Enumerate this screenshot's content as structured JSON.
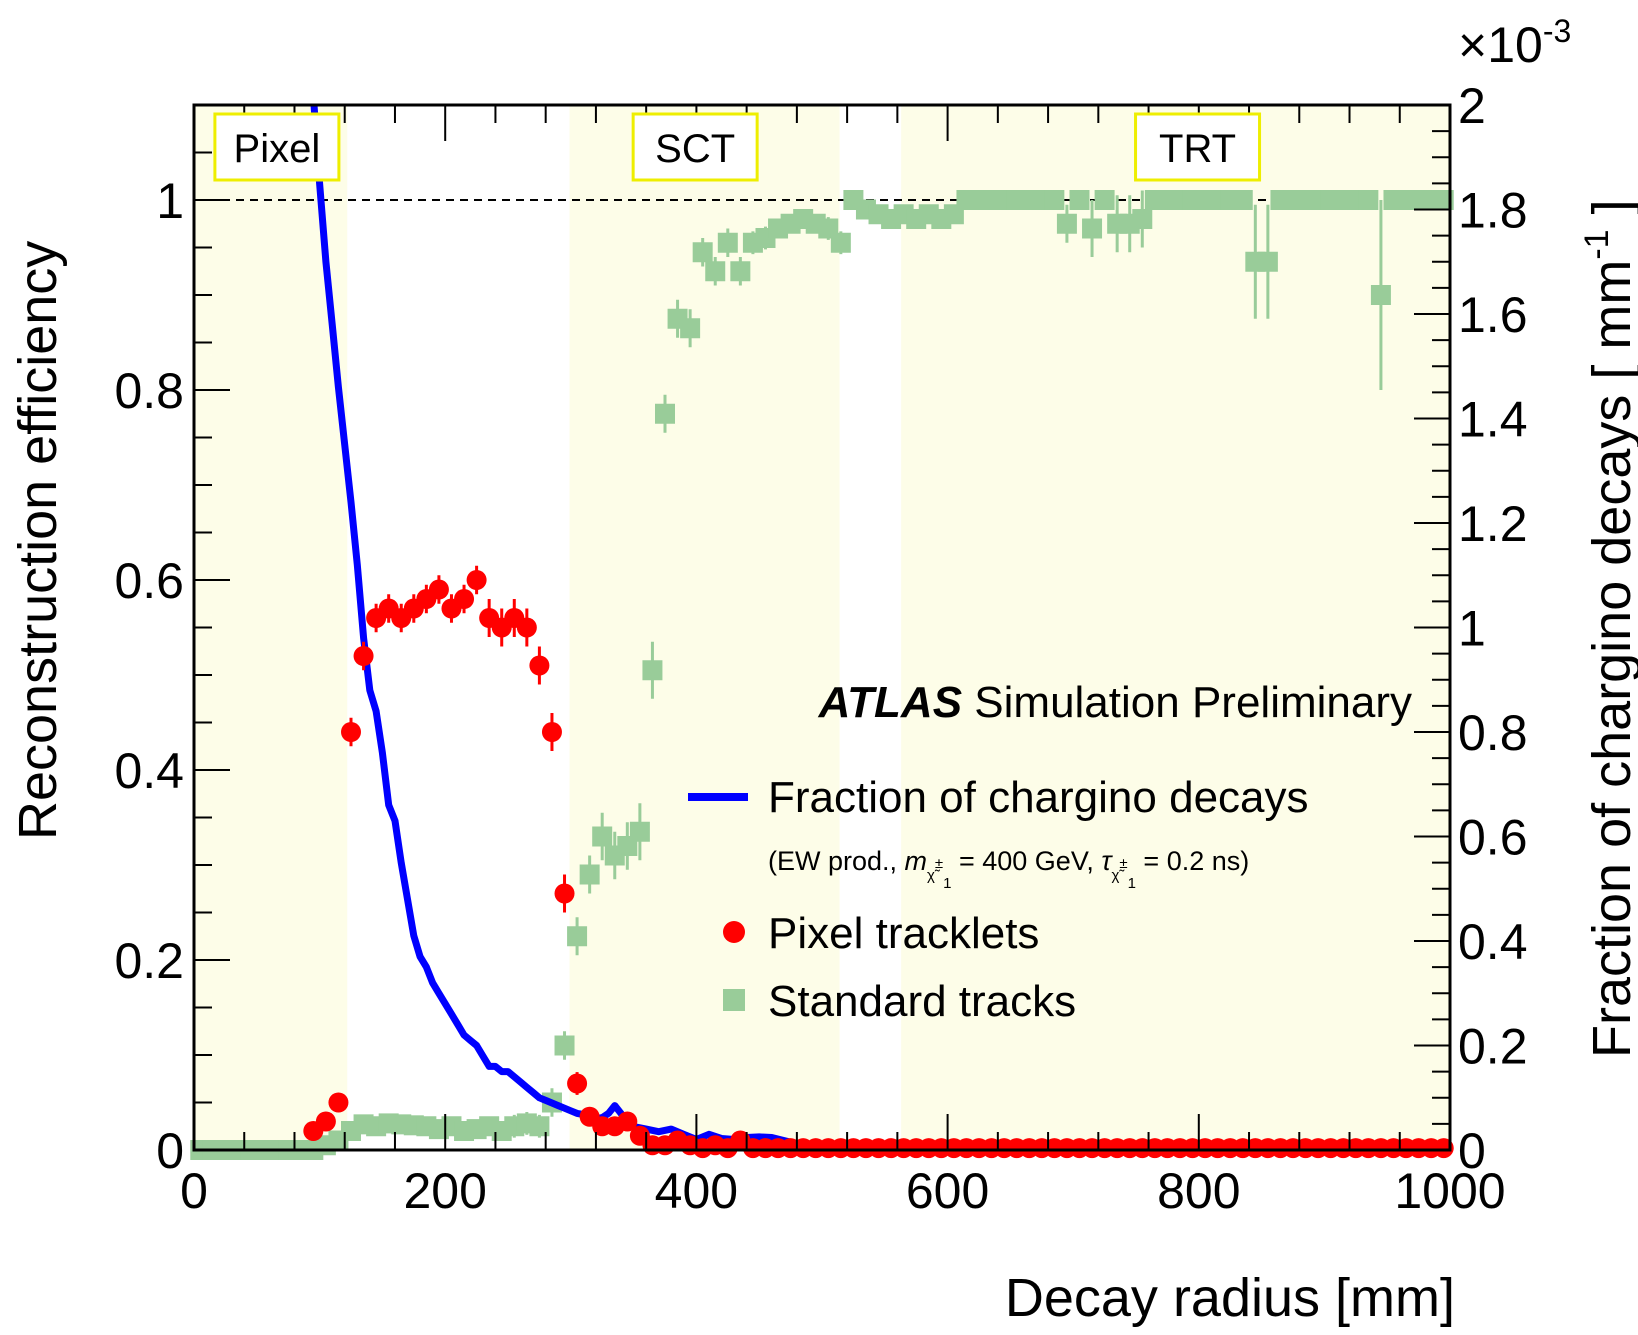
{
  "chart_data": {
    "type": "scatter",
    "title": "",
    "xlabel": "Decay radius [mm]",
    "ylabel": "Reconstruction efficiency",
    "y2label": "Fraction of chargino decays [ mm",
    "y2label_sup": "-1",
    "y2label_end": " ]",
    "y2_multiplier": "×10",
    "y2_multiplier_exp": "-3",
    "xlim": [
      0,
      1000
    ],
    "ylim": [
      0,
      1.1
    ],
    "y2lim": [
      0,
      2.0
    ],
    "x_ticks": [
      "0",
      "200",
      "400",
      "600",
      "800",
      "1000"
    ],
    "x_tick_values": [
      0,
      200,
      400,
      600,
      800,
      1000
    ],
    "y_ticks": [
      "0",
      "0.2",
      "0.4",
      "0.6",
      "0.8",
      "1"
    ],
    "y_tick_values": [
      0,
      0.2,
      0.4,
      0.6,
      0.8,
      1.0
    ],
    "y2_ticks": [
      "0",
      "0.2",
      "0.4",
      "0.6",
      "0.8",
      "1",
      "1.2",
      "1.4",
      "1.6",
      "1.8",
      "2"
    ],
    "y2_tick_values": [
      0,
      0.2,
      0.4,
      0.6,
      0.8,
      1.0,
      1.2,
      1.4,
      1.6,
      1.8,
      2.0
    ],
    "reference_line_y": 1.0,
    "regions": [
      {
        "name": "Pixel",
        "x_range": [
          0,
          122
        ]
      },
      {
        "name": "SCT",
        "x_range": [
          299,
          514
        ]
      },
      {
        "name": "TRT",
        "x_range": [
          563,
          1000
        ]
      }
    ],
    "region_labels": [
      {
        "name": "Pixel",
        "x_center": 66
      },
      {
        "name": "SCT",
        "x_center": 399
      },
      {
        "name": "TRT",
        "x_center": 799
      }
    ],
    "annotation": {
      "bold": "ATLAS",
      "rest": " Simulation Preliminary"
    },
    "legend": {
      "position": "center-right",
      "entries": [
        {
          "label": "Fraction of chargino decays",
          "symbol": "line",
          "color": "#0000ff"
        },
        {
          "label": "Pixel tracklets",
          "symbol": "circle",
          "color": "#ff0000"
        },
        {
          "label": "Standard tracks",
          "symbol": "square",
          "color": "#99cc99"
        }
      ],
      "subtitle": {
        "prefix": "(EW prod., ",
        "m": "m",
        "eq1": " = 400 GeV, ",
        "tau": "τ",
        "eq2": " = 0.2 ns)",
        "sub_symbol": "χ̃",
        "sub_sup": "±",
        "sub_index": "1"
      }
    },
    "colors": {
      "region_fill": "#fdfde8",
      "region_box": "#eeee00",
      "fraction_line": "#0000ff",
      "pixel_tracklets": "#ff0000",
      "standard_tracks": "#99cc99",
      "standard_tracks_err": "#99cc99"
    },
    "series": [
      {
        "name": "Fraction of chargino decays",
        "axis": "right",
        "x": [
          95,
          100,
          105,
          110,
          115,
          120,
          125,
          130,
          135,
          140,
          145,
          150,
          155,
          160,
          165,
          170,
          175,
          180,
          185,
          190,
          195,
          200,
          205,
          210,
          215,
          220,
          225,
          230,
          235,
          240,
          245,
          250,
          255,
          260,
          265,
          270,
          275,
          280,
          285,
          290,
          295,
          300,
          305,
          310,
          315,
          320,
          325,
          330,
          335,
          340,
          345,
          350,
          360,
          370,
          380,
          390,
          400,
          410,
          420,
          430,
          440,
          450,
          460,
          470,
          480,
          490,
          500,
          520,
          540,
          560,
          580,
          600,
          650,
          700,
          800,
          900,
          1000
        ],
        "values": [
          2.02,
          1.85,
          1.7,
          1.58,
          1.46,
          1.35,
          1.24,
          1.12,
          0.98,
          0.88,
          0.84,
          0.76,
          0.66,
          0.63,
          0.55,
          0.48,
          0.41,
          0.37,
          0.35,
          0.32,
          0.3,
          0.28,
          0.26,
          0.24,
          0.22,
          0.21,
          0.2,
          0.18,
          0.16,
          0.16,
          0.15,
          0.15,
          0.14,
          0.13,
          0.12,
          0.11,
          0.1,
          0.095,
          0.09,
          0.085,
          0.08,
          0.075,
          0.07,
          0.068,
          0.065,
          0.06,
          0.062,
          0.07,
          0.085,
          0.07,
          0.05,
          0.045,
          0.04,
          0.035,
          0.04,
          0.03,
          0.02,
          0.03,
          0.022,
          0.02,
          0.024,
          0.025,
          0.024,
          0.018,
          0.012,
          0.01,
          0.008,
          0.006,
          0.004,
          0.003,
          0.002,
          0.002,
          0.001,
          0.001,
          0.0005,
          0.0002,
          0.0001
        ]
      },
      {
        "name": "Pixel tracklets",
        "axis": "left",
        "x": [
          95,
          105,
          115,
          125,
          135,
          145,
          155,
          165,
          175,
          185,
          195,
          205,
          215,
          225,
          235,
          245,
          255,
          265,
          275,
          285,
          295,
          305,
          315,
          325,
          335,
          345,
          355,
          365,
          375,
          385,
          395,
          405,
          415,
          425,
          435,
          445,
          455,
          465,
          475,
          485,
          495,
          505,
          515,
          525,
          535,
          545,
          555,
          565,
          575,
          585,
          595,
          605,
          615,
          625,
          635,
          645,
          655,
          665,
          675,
          685,
          695,
          705,
          715,
          725,
          735,
          745,
          755,
          765,
          775,
          785,
          795,
          805,
          815,
          825,
          835,
          845,
          855,
          865,
          875,
          885,
          895,
          905,
          915,
          925,
          935,
          945,
          955,
          965,
          975,
          985,
          995
        ],
        "values": [
          0.02,
          0.03,
          0.05,
          0.44,
          0.52,
          0.56,
          0.57,
          0.56,
          0.57,
          0.58,
          0.59,
          0.57,
          0.58,
          0.6,
          0.56,
          0.55,
          0.56,
          0.55,
          0.51,
          0.44,
          0.27,
          0.07,
          0.035,
          0.025,
          0.025,
          0.03,
          0.015,
          0.005,
          0.005,
          0.01,
          0.005,
          0.002,
          0.005,
          0.002,
          0.01,
          0.002,
          0.002,
          0.002,
          0.002,
          0.002,
          0.002,
          0.002,
          0.002,
          0.002,
          0.002,
          0.002,
          0.002,
          0.002,
          0.002,
          0.002,
          0.002,
          0.002,
          0.002,
          0.002,
          0.002,
          0.002,
          0.002,
          0.002,
          0.002,
          0.002,
          0.002,
          0.002,
          0.002,
          0.002,
          0.002,
          0.002,
          0.002,
          0.002,
          0.002,
          0.002,
          0.002,
          0.002,
          0.002,
          0.002,
          0.002,
          0.002,
          0.002,
          0.002,
          0.002,
          0.002,
          0.002,
          0.002,
          0.002,
          0.002,
          0.002,
          0.002,
          0.002,
          0.002,
          0.002,
          0.002,
          0.002
        ],
        "errors": [
          0.008,
          0.008,
          0.01,
          0.015,
          0.015,
          0.015,
          0.015,
          0.015,
          0.015,
          0.015,
          0.015,
          0.015,
          0.015,
          0.015,
          0.02,
          0.02,
          0.02,
          0.02,
          0.02,
          0.02,
          0.02,
          0.012,
          0.008,
          0.006,
          0.006,
          0.006,
          0.005,
          0.003,
          0.003,
          0.004,
          0.003,
          0.002,
          0.003,
          0.002,
          0.004,
          0.002,
          0.002,
          0.002,
          0.002,
          0.002,
          0.002,
          0.002,
          0.002,
          0.002,
          0.002,
          0.002,
          0.002,
          0.002,
          0.002,
          0.002,
          0.002,
          0.002,
          0.002,
          0.002,
          0.002,
          0.002,
          0.002,
          0.002,
          0.002,
          0.002,
          0.002,
          0.002,
          0.002,
          0.002,
          0.002,
          0.002,
          0.002,
          0.002,
          0.002,
          0.002,
          0.002,
          0.002,
          0.002,
          0.002,
          0.002,
          0.002,
          0.002,
          0.002,
          0.002,
          0.002,
          0.002,
          0.002,
          0.002,
          0.002,
          0.002,
          0.002,
          0.002,
          0.002,
          0.002,
          0.002,
          0.002
        ]
      },
      {
        "name": "Standard tracks",
        "axis": "left",
        "x": [
          5,
          15,
          25,
          35,
          45,
          55,
          65,
          75,
          85,
          95,
          105,
          115,
          125,
          135,
          145,
          155,
          165,
          175,
          185,
          195,
          205,
          215,
          225,
          235,
          245,
          255,
          265,
          275,
          285,
          295,
          305,
          315,
          325,
          335,
          345,
          355,
          365,
          375,
          385,
          395,
          405,
          415,
          425,
          435,
          445,
          455,
          465,
          475,
          485,
          495,
          505,
          515,
          525,
          535,
          545,
          555,
          565,
          575,
          585,
          595,
          605,
          615,
          625,
          635,
          645,
          655,
          665,
          675,
          685,
          695,
          705,
          715,
          725,
          735,
          745,
          755,
          765,
          775,
          785,
          795,
          805,
          815,
          825,
          835,
          845,
          855,
          865,
          875,
          885,
          895,
          905,
          915,
          925,
          935,
          945,
          955,
          965,
          975,
          985,
          995
        ],
        "values": [
          0.0,
          0.0,
          0.0,
          0.0,
          0.0,
          0.0,
          0.0,
          0.0,
          0.0,
          0.0,
          0.005,
          0.01,
          0.02,
          0.027,
          0.025,
          0.028,
          0.027,
          0.026,
          0.025,
          0.022,
          0.025,
          0.02,
          0.022,
          0.025,
          0.02,
          0.025,
          0.028,
          0.025,
          0.05,
          0.11,
          0.225,
          0.29,
          0.33,
          0.31,
          0.32,
          0.335,
          0.505,
          0.775,
          0.875,
          0.865,
          0.945,
          0.925,
          0.955,
          0.925,
          0.955,
          0.96,
          0.97,
          0.975,
          0.98,
          0.975,
          0.97,
          0.955,
          1.0,
          0.99,
          0.985,
          0.98,
          0.985,
          0.98,
          0.985,
          0.98,
          0.985,
          1.0,
          1.0,
          1.0,
          1.0,
          1.0,
          1.0,
          1.0,
          1.0,
          0.975,
          1.0,
          0.97,
          1.0,
          0.975,
          0.975,
          0.98,
          1.0,
          1.0,
          1.0,
          1.0,
          1.0,
          1.0,
          1.0,
          1.0,
          0.935,
          0.935,
          1.0,
          1.0,
          1.0,
          1.0,
          1.0,
          1.0,
          1.0,
          1.0,
          0.9,
          1.0,
          1.0,
          1.0,
          1.0,
          1.0
        ],
        "errors": [
          0.002,
          0.002,
          0.002,
          0.002,
          0.002,
          0.002,
          0.002,
          0.002,
          0.002,
          0.002,
          0.004,
          0.006,
          0.008,
          0.01,
          0.01,
          0.01,
          0.01,
          0.01,
          0.01,
          0.01,
          0.01,
          0.01,
          0.01,
          0.01,
          0.01,
          0.012,
          0.012,
          0.012,
          0.015,
          0.015,
          0.02,
          0.02,
          0.025,
          0.025,
          0.025,
          0.03,
          0.03,
          0.02,
          0.02,
          0.02,
          0.015,
          0.015,
          0.015,
          0.015,
          0.012,
          0.012,
          0.01,
          0.01,
          0.01,
          0.01,
          0.012,
          0.012,
          0.008,
          0.008,
          0.008,
          0.008,
          0.008,
          0.008,
          0.008,
          0.008,
          0.008,
          0.005,
          0.005,
          0.005,
          0.005,
          0.005,
          0.005,
          0.005,
          0.005,
          0.02,
          0.005,
          0.03,
          0.005,
          0.03,
          0.03,
          0.03,
          0.005,
          0.005,
          0.005,
          0.005,
          0.005,
          0.005,
          0.005,
          0.005,
          0.06,
          0.06,
          0.005,
          0.005,
          0.005,
          0.005,
          0.005,
          0.005,
          0.005,
          0.005,
          0.1,
          0.005,
          0.005,
          0.005,
          0.005,
          0.005
        ]
      }
    ]
  }
}
